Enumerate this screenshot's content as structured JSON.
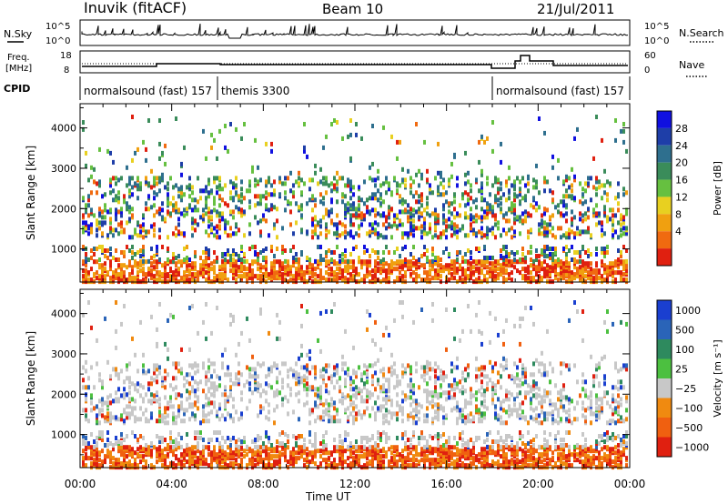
{
  "header": {
    "station": "Inuvik (fitACF)",
    "beam": "Beam 10",
    "date": "21/Jul/2011"
  },
  "side_labels": {
    "nsky": "N.Sky",
    "nsky_hi": "10^5",
    "nsky_lo": "10^0",
    "freq_line1": "Freq.",
    "freq_line2": "[MHz]",
    "freq_hi": "18",
    "freq_lo": "8",
    "cpid": "CPID",
    "nsearch": "N.Search",
    "nsearch_hi": "10^5",
    "nsearch_lo": "10^0",
    "nave": "Nave",
    "nave_hi": "60",
    "nave_lo": "0"
  },
  "cpid_segments": [
    {
      "label": "normalsound (fast) 157",
      "start_hour": 0,
      "end_hour": 6
    },
    {
      "label": "themis 3300",
      "start_hour": 6,
      "end_hour": 18
    },
    {
      "label": "normalsound (fast) 157",
      "start_hour": 18,
      "end_hour": 24
    }
  ],
  "chart_data": [
    {
      "type": "heatmap",
      "title": "",
      "xlabel": "Time UT",
      "ylabel": "Slant Range [km]",
      "x_ticks": [
        "00:00",
        "04:00",
        "08:00",
        "12:00",
        "16:00",
        "20:00",
        "00:00"
      ],
      "x_range_hours": [
        0,
        24
      ],
      "y_ticks": [
        1000,
        2000,
        3000,
        4000
      ],
      "ylim": [
        180,
        4600
      ],
      "colorbar": {
        "label": "Power [dB]",
        "ticks": [
          "4",
          "8",
          "12",
          "16",
          "20",
          "24",
          "28"
        ],
        "colors": [
          "#1010e0",
          "#1e3ea8",
          "#2e6f8e",
          "#3a8c5a",
          "#66c040",
          "#e8d020",
          "#f0a010",
          "#f06a10",
          "#e02010"
        ]
      }
    },
    {
      "type": "heatmap",
      "title": "",
      "xlabel": "Time UT",
      "ylabel": "Slant Range [km]",
      "x_ticks": [
        "00:00",
        "04:00",
        "08:00",
        "12:00",
        "16:00",
        "20:00",
        "00:00"
      ],
      "x_range_hours": [
        0,
        24
      ],
      "y_ticks": [
        1000,
        2000,
        3000,
        4000
      ],
      "ylim": [
        180,
        4600
      ],
      "colorbar": {
        "label": "Velocity [m s⁻¹]",
        "ticks": [
          "1000",
          "500",
          "100",
          "25",
          "−25",
          "−100",
          "−500",
          "−1000"
        ],
        "colors": [
          "#1a3fd0",
          "#2a64b8",
          "#2e8a5e",
          "#4cc040",
          "#c8c8c8",
          "#f08a10",
          "#f06010",
          "#e02010"
        ]
      }
    }
  ]
}
